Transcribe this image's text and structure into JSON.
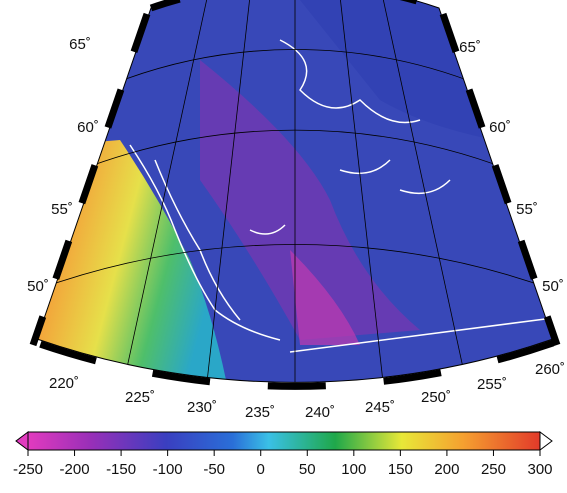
{
  "map": {
    "lat_labels_left": [
      "65˚",
      "60˚",
      "55˚",
      "50˚"
    ],
    "lat_labels_right": [
      "65˚",
      "60˚",
      "55˚",
      "50˚"
    ],
    "lon_labels": [
      "220˚",
      "225˚",
      "230˚",
      "235˚",
      "240˚",
      "245˚",
      "250˚",
      "255˚",
      "260˚"
    ]
  },
  "colorbar": {
    "lim": [
      -250,
      300
    ],
    "ticks": [
      -250,
      -200,
      -150,
      -100,
      -50,
      0,
      50,
      100,
      150,
      200,
      250,
      300
    ]
  }
}
